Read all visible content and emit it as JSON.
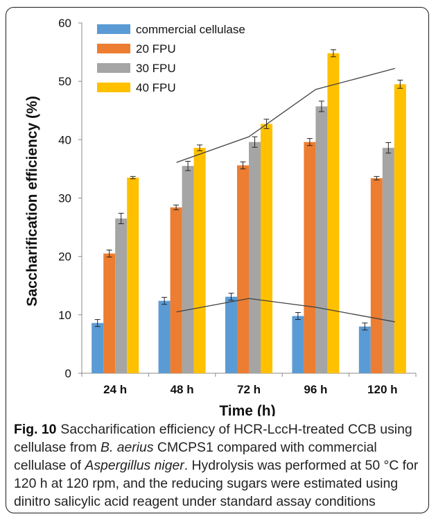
{
  "chart_data": {
    "type": "bar",
    "categories": [
      "24 h",
      "48 h",
      "72 h",
      "96 h",
      "120 h"
    ],
    "series": [
      {
        "name": "commercial cellulase",
        "color": "#5b9bd5",
        "values": [
          8.6,
          12.4,
          13.1,
          9.8,
          8.0
        ],
        "errors": [
          0.6,
          0.6,
          0.6,
          0.6,
          0.6
        ]
      },
      {
        "name": "20 FPU",
        "color": "#ed7d31",
        "values": [
          20.5,
          28.4,
          35.6,
          39.6,
          33.4
        ],
        "errors": [
          0.6,
          0.4,
          0.6,
          0.6,
          0.3
        ]
      },
      {
        "name": "30 FPU",
        "color": "#a5a5a5",
        "values": [
          26.5,
          35.5,
          39.6,
          45.7,
          38.6
        ],
        "errors": [
          0.9,
          0.8,
          0.9,
          0.9,
          0.9
        ]
      },
      {
        "name": "40 FPU",
        "color": "#ffc000",
        "values": [
          33.5,
          38.6,
          42.7,
          54.8,
          49.5
        ],
        "errors": [
          0.2,
          0.5,
          0.8,
          0.6,
          0.7
        ]
      }
    ],
    "trendlines": [
      {
        "color": "#404040",
        "x": [
          "24 h",
          "48 h",
          "72 h",
          "96 h",
          "120 h"
        ],
        "y": [
          null,
          10.5,
          12.8,
          11.3,
          8.8
        ]
      },
      {
        "color": "#404040",
        "x": [
          "24 h",
          "48 h",
          "72 h",
          "96 h",
          "120 h"
        ],
        "y": [
          null,
          36.1,
          40.5,
          48.6,
          52.2
        ]
      }
    ],
    "ylabel": "Saccharification efficiency (%)",
    "xlabel": "Time (h)",
    "ylim": [
      0,
      60
    ],
    "yticks": [
      0,
      10,
      20,
      30,
      40,
      50,
      60
    ],
    "legend_position": "top-left",
    "grid": false
  },
  "caption": {
    "label": "Fig. 10",
    "parts": [
      {
        "text": "Saccharification efficiency of HCR-LccH-treated CCB using cellulase from ",
        "italic": false
      },
      {
        "text": "B. aerius",
        "italic": true
      },
      {
        "text": " CMCPS1 compared with commercial cellulase of ",
        "italic": false
      },
      {
        "text": "Aspergillus niger",
        "italic": true
      },
      {
        "text": ". Hydrolysis was performed at 50 °C for 120 h at 120 rpm, and the reducing sugars were estimated using dinitro salicylic acid reagent under standard assay conditions",
        "italic": false
      }
    ]
  }
}
